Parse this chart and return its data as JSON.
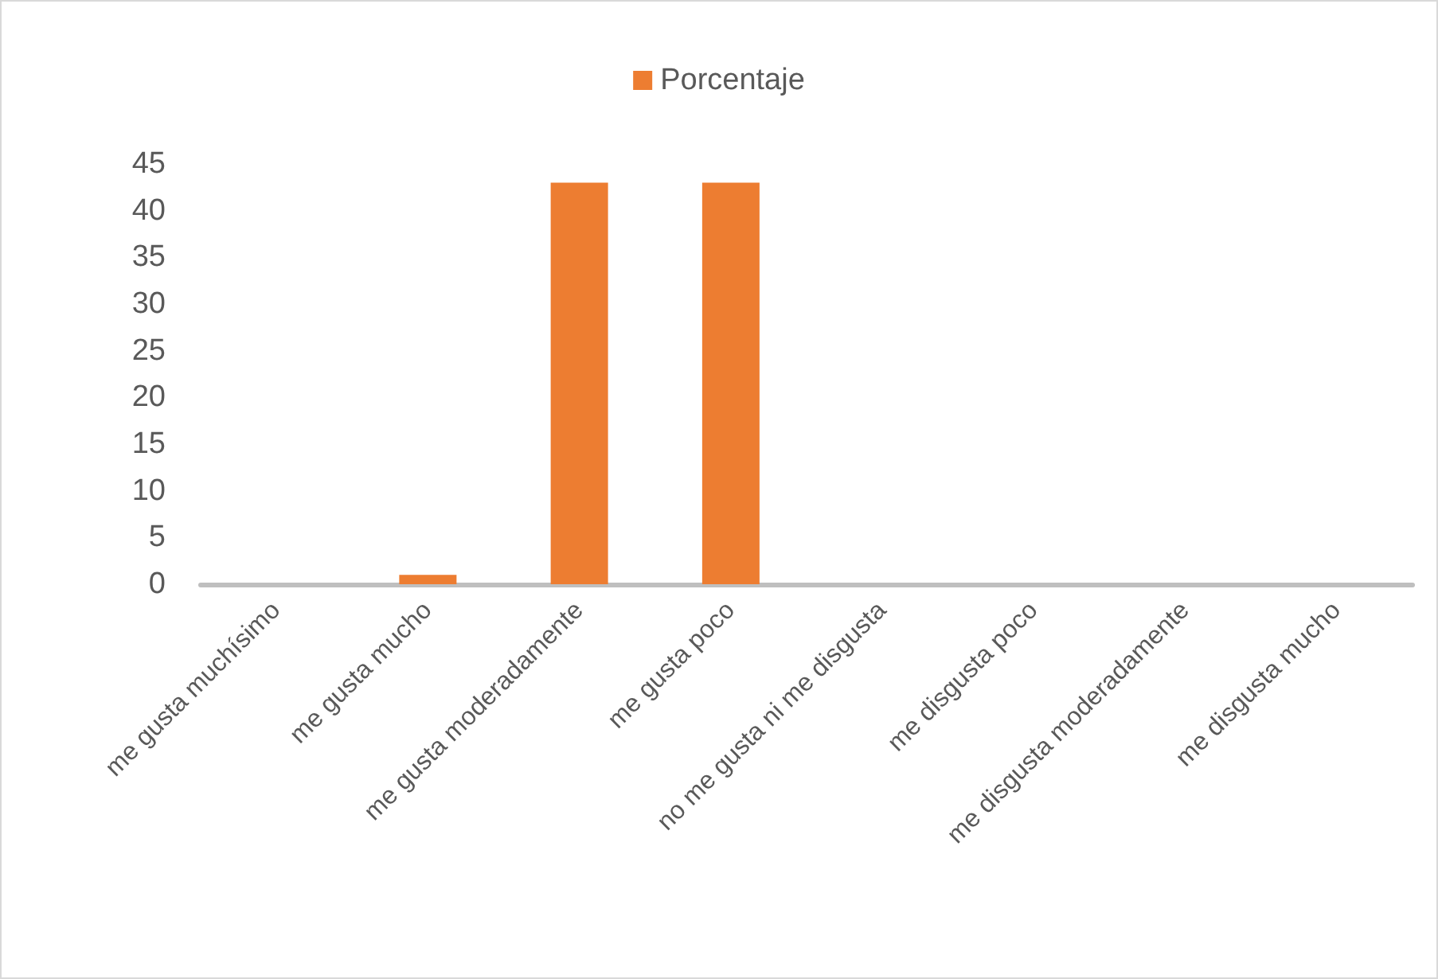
{
  "chart_data": {
    "type": "bar",
    "categories": [
      "me gusta muchísimo",
      "me gusta mucho",
      "me gusta moderadamente",
      "me gusta poco",
      "no me gusta ni me disgusta",
      "me disgusta poco",
      "me disgusta moderadamente",
      "me disgusta mucho"
    ],
    "series": [
      {
        "name": "Porcentaje",
        "color": "#ed7d31",
        "values": [
          0,
          1,
          43,
          43,
          0,
          0,
          0,
          0
        ]
      }
    ],
    "ylim": [
      0,
      45
    ],
    "yticks": [
      0,
      5,
      10,
      15,
      20,
      25,
      30,
      35,
      40,
      45
    ],
    "grid": false,
    "legend": "top"
  }
}
